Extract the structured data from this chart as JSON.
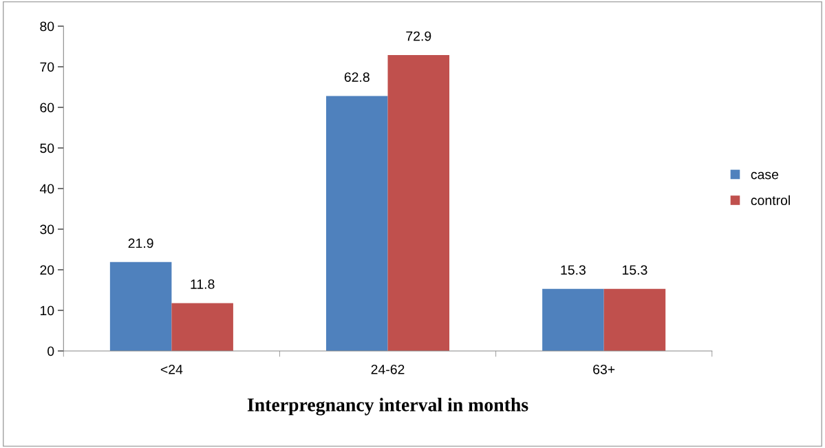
{
  "chart_data": {
    "type": "bar",
    "xlabel": "Interpregnancy interval in months",
    "categories": [
      "<24",
      "24-62",
      "63+"
    ],
    "series": [
      {
        "name": "case",
        "color": "#4f81bd",
        "values": [
          21.9,
          62.8,
          15.3
        ]
      },
      {
        "name": "control",
        "color": "#c0504d",
        "values": [
          11.8,
          72.9,
          15.3
        ]
      }
    ],
    "ylim": [
      0,
      80
    ],
    "yticks": [
      0,
      10,
      20,
      30,
      40,
      50,
      60,
      70,
      80
    ],
    "data_labels": true,
    "legend": "right",
    "grid": false
  }
}
